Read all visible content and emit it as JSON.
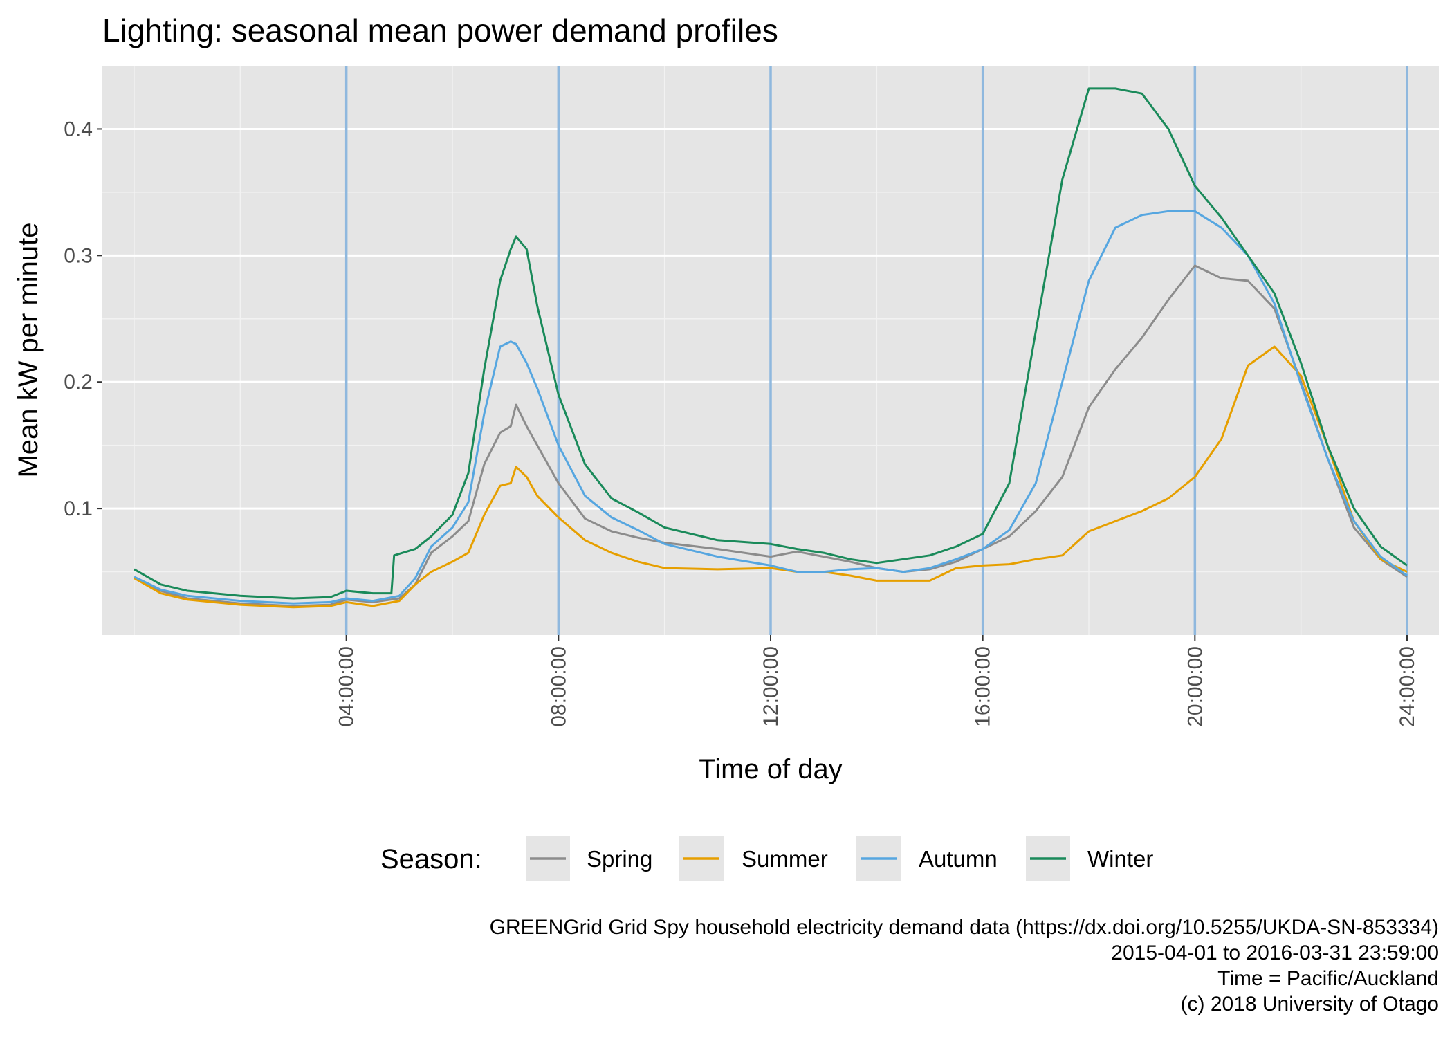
{
  "chart_data": {
    "type": "line",
    "title": "Lighting: seasonal mean power demand profiles",
    "xlabel": "Time of day",
    "ylabel": "Mean kW per minute",
    "x_unit": "hours",
    "xlim": [
      -0.6,
      24.6
    ],
    "ylim": [
      0.0,
      0.45
    ],
    "x_ticks": [
      {
        "value": 4,
        "label": "04:00:00"
      },
      {
        "value": 8,
        "label": "08:00:00"
      },
      {
        "value": 12,
        "label": "12:00:00"
      },
      {
        "value": 16,
        "label": "16:00:00"
      },
      {
        "value": 20,
        "label": "20:00:00"
      },
      {
        "value": 24,
        "label": "24:00:00"
      }
    ],
    "x_minor_grid": [
      0,
      2,
      6,
      10,
      14,
      18,
      22
    ],
    "y_ticks": [
      {
        "value": 0.1,
        "label": "0.1"
      },
      {
        "value": 0.2,
        "label": "0.2"
      },
      {
        "value": 0.3,
        "label": "0.3"
      },
      {
        "value": 0.4,
        "label": "0.4"
      }
    ],
    "y_minor_grid": [
      0.05,
      0.15,
      0.25,
      0.35
    ],
    "vlines": [
      4,
      8,
      12,
      16,
      20,
      24
    ],
    "vline_color": "#8fb8de",
    "panel_bg": "#e5e5e5",
    "grid": true,
    "legend_position": "bottom",
    "legend_title": "Season:",
    "series": [
      {
        "name": "Spring",
        "color": "#8c8c8c",
        "x": [
          0,
          0.5,
          1,
          2,
          3,
          3.7,
          4,
          4.5,
          5,
          5.3,
          5.6,
          6,
          6.3,
          6.6,
          6.9,
          7.1,
          7.2,
          7.4,
          7.6,
          8,
          8.5,
          9,
          9.5,
          10,
          11,
          12,
          12.5,
          13,
          13.5,
          14,
          14.5,
          15,
          15.5,
          16,
          16.5,
          17,
          17.5,
          18,
          18.5,
          19,
          19.5,
          20,
          20.5,
          21,
          21.5,
          22,
          22.5,
          23,
          23.5,
          24
        ],
        "y": [
          0.045,
          0.035,
          0.029,
          0.025,
          0.023,
          0.024,
          0.028,
          0.026,
          0.029,
          0.04,
          0.065,
          0.078,
          0.09,
          0.135,
          0.16,
          0.165,
          0.182,
          0.165,
          0.15,
          0.12,
          0.092,
          0.082,
          0.077,
          0.073,
          0.068,
          0.062,
          0.066,
          0.062,
          0.058,
          0.053,
          0.05,
          0.052,
          0.058,
          0.068,
          0.078,
          0.098,
          0.125,
          0.18,
          0.21,
          0.235,
          0.265,
          0.292,
          0.282,
          0.28,
          0.258,
          0.2,
          0.14,
          0.085,
          0.06,
          0.046
        ]
      },
      {
        "name": "Summer",
        "color": "#e69f00",
        "x": [
          0,
          0.5,
          1,
          2,
          3,
          3.7,
          4,
          4.5,
          5,
          5.3,
          5.6,
          6,
          6.3,
          6.6,
          6.9,
          7.1,
          7.2,
          7.4,
          7.6,
          8,
          8.5,
          9,
          9.5,
          10,
          11,
          12,
          12.5,
          13,
          13.5,
          14,
          14.5,
          15,
          15.5,
          16,
          16.5,
          17,
          17.5,
          18,
          18.5,
          19,
          19.5,
          20,
          20.5,
          21,
          21.5,
          22,
          22.5,
          23,
          23.5,
          24
        ],
        "y": [
          0.045,
          0.033,
          0.028,
          0.024,
          0.022,
          0.023,
          0.026,
          0.023,
          0.027,
          0.04,
          0.05,
          0.058,
          0.065,
          0.095,
          0.118,
          0.12,
          0.133,
          0.125,
          0.11,
          0.093,
          0.075,
          0.065,
          0.058,
          0.053,
          0.052,
          0.053,
          0.05,
          0.05,
          0.047,
          0.043,
          0.043,
          0.043,
          0.053,
          0.055,
          0.056,
          0.06,
          0.063,
          0.082,
          0.09,
          0.098,
          0.108,
          0.125,
          0.155,
          0.213,
          0.228,
          0.205,
          0.15,
          0.09,
          0.06,
          0.05
        ]
      },
      {
        "name": "Autumn",
        "color": "#56a6e0",
        "x": [
          0,
          0.5,
          1,
          2,
          3,
          3.7,
          4,
          4.5,
          5,
          5.3,
          5.6,
          6,
          6.3,
          6.6,
          6.9,
          7.1,
          7.2,
          7.4,
          7.6,
          8,
          8.5,
          9,
          9.5,
          10,
          11,
          12,
          12.5,
          13,
          13.5,
          14,
          14.5,
          15,
          15.5,
          16,
          16.5,
          17,
          17.5,
          18,
          18.5,
          19,
          19.5,
          20,
          20.5,
          21,
          21.5,
          22,
          22.5,
          23,
          23.5,
          24
        ],
        "y": [
          0.046,
          0.036,
          0.031,
          0.027,
          0.025,
          0.026,
          0.029,
          0.027,
          0.031,
          0.045,
          0.07,
          0.085,
          0.105,
          0.175,
          0.228,
          0.232,
          0.23,
          0.215,
          0.195,
          0.15,
          0.11,
          0.093,
          0.083,
          0.072,
          0.062,
          0.055,
          0.05,
          0.05,
          0.052,
          0.053,
          0.05,
          0.053,
          0.06,
          0.068,
          0.083,
          0.12,
          0.2,
          0.28,
          0.322,
          0.332,
          0.335,
          0.335,
          0.322,
          0.3,
          0.262,
          0.198,
          0.14,
          0.09,
          0.062,
          0.047
        ]
      },
      {
        "name": "Winter",
        "color": "#1a8a5a",
        "x": [
          0,
          0.5,
          1,
          2,
          3,
          3.7,
          4,
          4.5,
          4.85,
          4.9,
          5.3,
          5.6,
          6,
          6.3,
          6.6,
          6.9,
          7.1,
          7.2,
          7.4,
          7.6,
          8,
          8.5,
          9,
          9.5,
          10,
          11,
          12,
          12.5,
          13,
          13.5,
          14,
          14.5,
          15,
          15.5,
          16,
          16.5,
          17,
          17.5,
          18,
          18.5,
          19,
          19.5,
          20,
          20.5,
          21,
          21.5,
          22,
          22.5,
          23,
          23.5,
          24
        ],
        "y": [
          0.052,
          0.04,
          0.035,
          0.031,
          0.029,
          0.03,
          0.035,
          0.033,
          0.033,
          0.063,
          0.068,
          0.078,
          0.095,
          0.128,
          0.21,
          0.28,
          0.305,
          0.315,
          0.305,
          0.26,
          0.19,
          0.135,
          0.108,
          0.097,
          0.085,
          0.075,
          0.072,
          0.068,
          0.065,
          0.06,
          0.057,
          0.06,
          0.063,
          0.07,
          0.08,
          0.12,
          0.24,
          0.36,
          0.432,
          0.432,
          0.428,
          0.4,
          0.355,
          0.33,
          0.3,
          0.27,
          0.215,
          0.15,
          0.1,
          0.07,
          0.055
        ]
      }
    ],
    "caption": [
      "GREENGrid Grid Spy household electricity demand data (https://dx.doi.org/10.5255/UKDA-SN-853334)",
      "2015-04-01 to 2016-03-31 23:59:00",
      "Time = Pacific/Auckland",
      "(c) 2018 University of Otago"
    ]
  }
}
